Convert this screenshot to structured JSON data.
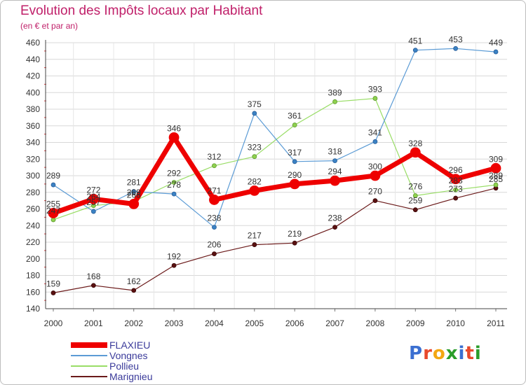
{
  "chart_data": {
    "type": "line",
    "title": "Evolution des Impôts locaux par Habitant",
    "subtitle": "(en € et par an)",
    "xlabel": "",
    "ylabel": "",
    "ylim": [
      140,
      460
    ],
    "yticks": [
      140,
      160,
      180,
      200,
      220,
      240,
      260,
      280,
      300,
      320,
      340,
      360,
      380,
      400,
      420,
      440,
      460
    ],
    "categories": [
      "2000",
      "2001",
      "2002",
      "2003",
      "2004",
      "2005",
      "2006",
      "2007",
      "2008",
      "2009",
      "2010",
      "2011"
    ],
    "series": [
      {
        "name": "Marignieu",
        "color": "#6b1a1a",
        "values": [
          159,
          168,
          162,
          192,
          206,
          217,
          219,
          238,
          270,
          259,
          273,
          285
        ],
        "labels": [
          "159",
          "168",
          "162",
          "192",
          "206",
          "217",
          "219",
          "238",
          "270",
          "259",
          "273",
          "285"
        ]
      },
      {
        "name": "Pollieu",
        "color": "#99dd66",
        "values": [
          247,
          264,
          269,
          292,
          312,
          323,
          361,
          389,
          393,
          276,
          283,
          289
        ],
        "labels": [
          "247",
          "264",
          "269",
          "292",
          "312",
          "323",
          "361",
          "389",
          "393",
          "276",
          "283",
          "289"
        ]
      },
      {
        "name": "Vongnes",
        "color": "#5b9bd5",
        "values": [
          289,
          257,
          281,
          278,
          238,
          375,
          317,
          318,
          341,
          451,
          453,
          449
        ],
        "labels": [
          "289",
          "257",
          "281",
          "278",
          "238",
          "375",
          "317",
          "318",
          "341",
          "451",
          "453",
          "449"
        ]
      },
      {
        "name": "FLAXIEU",
        "color": "#ee0000",
        "values": [
          255,
          272,
          266,
          346,
          271,
          282,
          290,
          294,
          300,
          328,
          296,
          309
        ],
        "labels": [
          "255",
          "272",
          "266",
          "346",
          "271",
          "282",
          "290",
          "294",
          "300",
          "328",
          "296",
          "309"
        ]
      }
    ],
    "legend_position": "bottom-left"
  },
  "legend": [
    {
      "name": "FLAXIEU",
      "color": "#ee0000"
    },
    {
      "name": "Vongnes",
      "color": "#5b9bd5"
    },
    {
      "name": "Pollieu",
      "color": "#99dd66"
    },
    {
      "name": "Marignieu",
      "color": "#6b1a1a"
    }
  ],
  "logo": {
    "text": "Proxiti",
    "letters": [
      "P",
      "r",
      "o",
      "x",
      "i",
      "t",
      "i"
    ],
    "colors": [
      "#3b6fd1",
      "#e8492c",
      "#f3a712",
      "#2a9d2a",
      "#3b6fd1",
      "#e8492c",
      "#2a9d2a"
    ]
  }
}
